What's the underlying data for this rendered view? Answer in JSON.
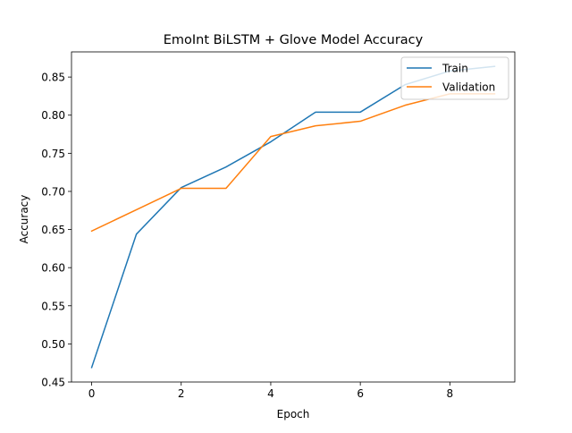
{
  "chart_data": {
    "type": "line",
    "title": "EmoInt BiLSTM + Glove Model Accuracy",
    "xlabel": "Epoch",
    "ylabel": "Accuracy",
    "xlim": [
      -0.45,
      9.45
    ],
    "ylim": [
      0.45,
      0.883
    ],
    "xticks": [
      0,
      2,
      4,
      6,
      8
    ],
    "xtick_labels": [
      "0",
      "2",
      "4",
      "6",
      "8"
    ],
    "yticks": [
      0.45,
      0.5,
      0.55,
      0.6,
      0.65,
      0.7,
      0.75,
      0.8,
      0.85
    ],
    "ytick_labels": [
      "0.45",
      "0.50",
      "0.55",
      "0.60",
      "0.65",
      "0.70",
      "0.75",
      "0.80",
      "0.85"
    ],
    "grid": false,
    "legend_position": "top-right",
    "x": [
      0,
      1,
      2,
      3,
      4,
      5,
      6,
      7,
      8,
      9
    ],
    "series": [
      {
        "name": "Train",
        "color": "#1f77b4",
        "values": [
          0.469,
          0.644,
          0.705,
          0.732,
          0.765,
          0.804,
          0.804,
          0.84,
          0.858,
          0.864
        ]
      },
      {
        "name": "Validation",
        "color": "#ff7f0e",
        "values": [
          0.648,
          0.676,
          0.704,
          0.704,
          0.772,
          0.786,
          0.792,
          0.813,
          0.828,
          0.828
        ]
      }
    ]
  }
}
